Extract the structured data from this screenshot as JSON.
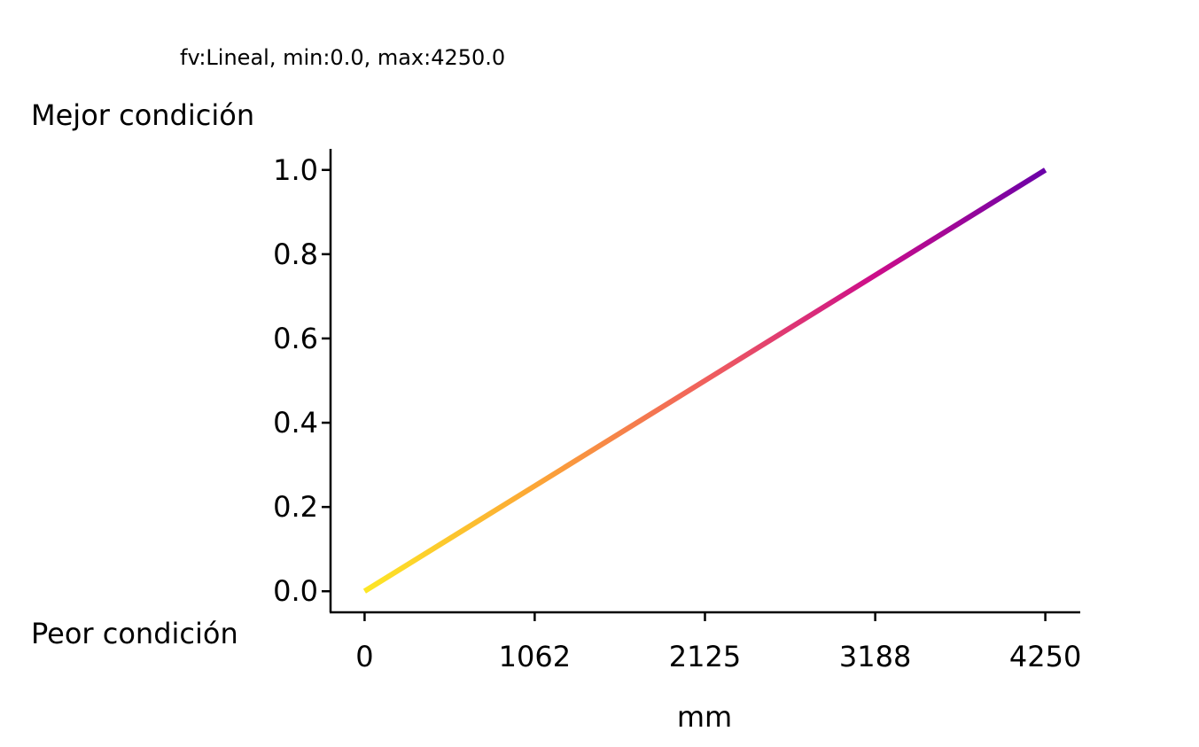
{
  "chart_data": {
    "type": "line",
    "title": "fv:Lineal, min:0.0, max:4250.0",
    "xlabel": "mm",
    "ylabel_top": "Mejor condición",
    "ylabel_bottom": "Peor condición",
    "xlim": [
      -212.5,
      4462.5
    ],
    "ylim": [
      -0.05,
      1.05
    ],
    "xticks": [
      0,
      1062,
      2125,
      3188,
      4250
    ],
    "xtick_labels": [
      "0",
      "1062",
      "2125",
      "3188",
      "4250"
    ],
    "yticks": [
      0.0,
      0.2,
      0.4,
      0.6,
      0.8,
      1.0
    ],
    "ytick_labels": [
      "0.0",
      "0.2",
      "0.4",
      "0.6",
      "0.8",
      "1.0"
    ],
    "grid": false,
    "colormap": "plasma_r",
    "gradient_colors": [
      "#fde725",
      "#fca636",
      "#f0605d",
      "#cc0d8a",
      "#6a00a8"
    ],
    "series": [
      {
        "x": [
          0,
          1062.5,
          2125,
          3187.5,
          4250
        ],
        "y": [
          0.0,
          0.25,
          0.5,
          0.75,
          1.0
        ]
      }
    ]
  }
}
